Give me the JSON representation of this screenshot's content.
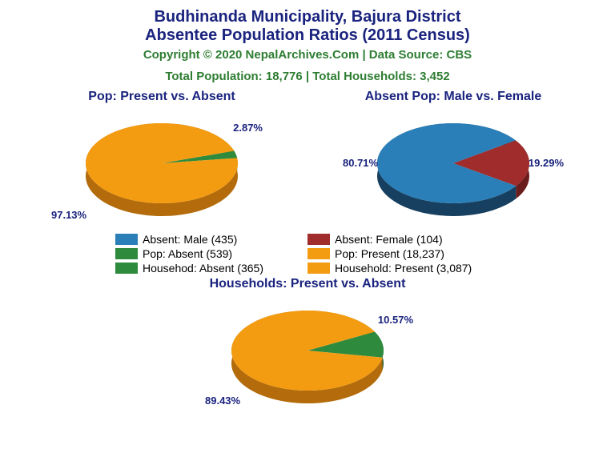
{
  "title_line1": "Budhinanda Municipality, Bajura District",
  "title_line2": "Absentee Population Ratios (2011 Census)",
  "copyright": "Copyright © 2020 NepalArchives.Com | Data Source: CBS",
  "totals": "Total Population: 18,776 | Total Households: 3,452",
  "colors": {
    "orange": "#f39c12",
    "orange_dark": "#b36b0b",
    "green": "#2e8b3d",
    "green_dark": "#1d5a27",
    "blue": "#2a7fb8",
    "blue_dark": "#173f5f",
    "red": "#a02c2c",
    "red_dark": "#6b1d1d",
    "title": "#1a237e",
    "subtitle": "#2e7d32"
  },
  "chart1": {
    "title": "Pop: Present vs. Absent",
    "slices": [
      {
        "label": "97.13%",
        "pct": 97.13,
        "fill": "#f39c12",
        "rim": "#b36b0b"
      },
      {
        "label": "2.87%",
        "pct": 2.87,
        "fill": "#2e8b3d",
        "rim": "#1d5a27"
      }
    ]
  },
  "chart2": {
    "title": "Absent Pop: Male vs. Female",
    "slices": [
      {
        "label": "80.71%",
        "pct": 80.71,
        "fill": "#2a7fb8",
        "rim": "#173f5f"
      },
      {
        "label": "19.29%",
        "pct": 19.29,
        "fill": "#a02c2c",
        "rim": "#6b1d1d"
      }
    ]
  },
  "chart3": {
    "title": "Households: Present vs. Absent",
    "slices": [
      {
        "label": "89.43%",
        "pct": 89.43,
        "fill": "#f39c12",
        "rim": "#b36b0b"
      },
      {
        "label": "10.57%",
        "pct": 10.57,
        "fill": "#2e8b3d",
        "rim": "#1d5a27"
      }
    ]
  },
  "legend": [
    {
      "color": "#2a7fb8",
      "text": "Absent: Male (435)"
    },
    {
      "color": "#a02c2c",
      "text": "Absent: Female (104)"
    },
    {
      "color": "#2e8b3d",
      "text": "Pop: Absent (539)"
    },
    {
      "color": "#f39c12",
      "text": "Pop: Present (18,237)"
    },
    {
      "color": "#2e8b3d",
      "text": "Househod: Absent (365)"
    },
    {
      "color": "#f39c12",
      "text": "Household: Present (3,087)"
    }
  ]
}
